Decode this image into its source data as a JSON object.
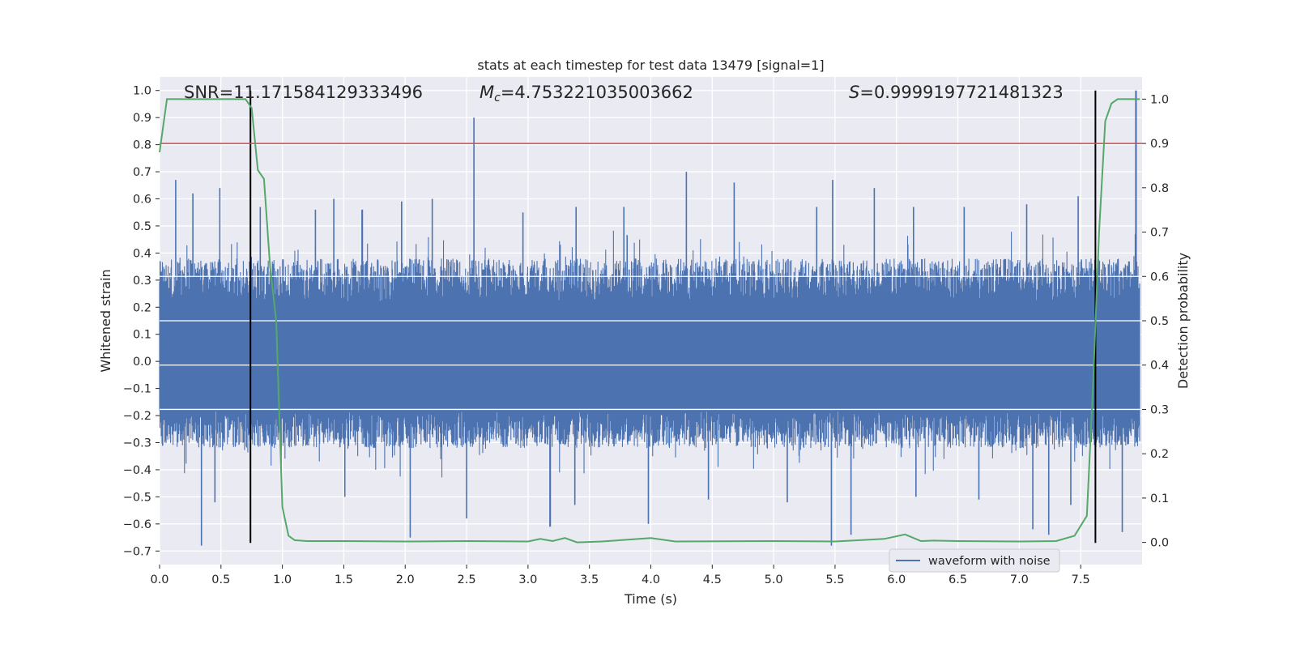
{
  "chart_data": {
    "type": "line",
    "title": "stats at each timestep for test data 13479 [signal=1]",
    "xlabel": "Time (s)",
    "ylabel": "Whitened strain",
    "y2label": "Detection probability",
    "xlim": [
      0.0,
      8.0
    ],
    "ylim": [
      -0.75,
      1.05
    ],
    "y2lim": [
      -0.05,
      1.05
    ],
    "xticks": [
      "0.0",
      "0.5",
      "1.0",
      "1.5",
      "2.0",
      "2.5",
      "3.0",
      "3.5",
      "4.0",
      "4.5",
      "5.0",
      "5.5",
      "6.0",
      "6.5",
      "7.0",
      "7.5"
    ],
    "yticks": [
      "−0.7",
      "−0.6",
      "−0.5",
      "−0.4",
      "−0.3",
      "−0.2",
      "−0.1",
      "0.0",
      "0.1",
      "0.2",
      "0.3",
      "0.4",
      "0.5",
      "0.6",
      "0.7",
      "0.8",
      "0.9",
      "1.0"
    ],
    "y2ticks": [
      "0.0",
      "0.1",
      "0.2",
      "0.3",
      "0.4",
      "0.5",
      "0.6",
      "0.7",
      "0.8",
      "0.9",
      "1.0"
    ],
    "grid": true,
    "legend": {
      "placement": "lower-right",
      "entries": [
        "waveform with noise"
      ]
    },
    "annotations": {
      "snr_prefix": "SNR=",
      "snr_value": "11.171584129333496",
      "mc_symbol": "M",
      "mc_subscript": "c",
      "mc_value": "=4.753221035003662",
      "s_symbol": "S",
      "s_value": "=0.9999197721481323"
    },
    "series": [
      {
        "name": "waveform with noise",
        "axis": "left",
        "color": "#4c72b0",
        "x_range": [
          0.0,
          7.98
        ],
        "typical_band": [
          -0.32,
          0.38
        ],
        "peak_times": [
          0.13,
          0.27,
          0.49,
          0.82,
          1.27,
          1.42,
          1.65,
          1.97,
          2.22,
          2.56,
          2.96,
          3.39,
          3.78,
          4.29,
          4.68,
          5.35,
          5.48,
          5.82,
          6.14,
          6.55,
          7.06,
          7.48,
          7.95
        ],
        "peak_values": [
          0.67,
          0.62,
          0.64,
          0.57,
          0.56,
          0.6,
          0.56,
          0.59,
          0.6,
          0.9,
          0.55,
          0.57,
          0.57,
          0.7,
          0.66,
          0.57,
          0.67,
          0.64,
          0.57,
          0.57,
          0.58,
          0.61,
          1.0
        ],
        "trough_times": [
          0.34,
          0.45,
          0.99,
          1.51,
          2.04,
          2.5,
          3.18,
          3.38,
          3.98,
          4.47,
          5.11,
          5.47,
          5.63,
          6.16,
          6.67,
          7.11,
          7.24,
          7.42,
          7.84
        ],
        "trough_values": [
          -0.68,
          -0.52,
          -0.38,
          -0.5,
          -0.65,
          -0.58,
          -0.61,
          -0.53,
          -0.6,
          -0.51,
          -0.52,
          -0.68,
          -0.64,
          -0.5,
          -0.51,
          -0.62,
          -0.64,
          -0.53,
          -0.63
        ]
      },
      {
        "name": "",
        "axis": "right",
        "color": "#55a868",
        "x": [
          0.0,
          0.06,
          0.3,
          0.5,
          0.7,
          0.75,
          0.8,
          0.85,
          0.9,
          0.95,
          1.0,
          1.05,
          1.1,
          1.2,
          1.5,
          2.0,
          2.5,
          3.0,
          3.1,
          3.2,
          3.3,
          3.4,
          3.6,
          4.0,
          4.2,
          5.0,
          5.5,
          5.9,
          6.07,
          6.2,
          6.3,
          6.5,
          7.0,
          7.3,
          7.45,
          7.55,
          7.6,
          7.65,
          7.7,
          7.75,
          7.8,
          7.85,
          7.9,
          7.98
        ],
        "y": [
          0.88,
          1.0,
          1.0,
          1.0,
          1.0,
          0.98,
          0.84,
          0.82,
          0.62,
          0.5,
          0.08,
          0.015,
          0.005,
          0.003,
          0.003,
          0.002,
          0.003,
          0.002,
          0.008,
          0.003,
          0.01,
          0.0,
          0.002,
          0.01,
          0.002,
          0.003,
          0.002,
          0.008,
          0.018,
          0.003,
          0.004,
          0.003,
          0.002,
          0.003,
          0.015,
          0.06,
          0.35,
          0.7,
          0.95,
          0.99,
          1.0,
          1.0,
          1.0,
          1.0
        ]
      }
    ],
    "threshold_line": {
      "axis": "right",
      "y": 0.9,
      "color": "#c44e52"
    },
    "vertical_markers": {
      "x": [
        0.74,
        7.62
      ],
      "y_range": [
        -0.67,
        1.0
      ],
      "color": "#000000"
    },
    "colors": {
      "plot_background": "#eaeaf2",
      "grid": "#ffffff",
      "text": "#262626"
    }
  }
}
